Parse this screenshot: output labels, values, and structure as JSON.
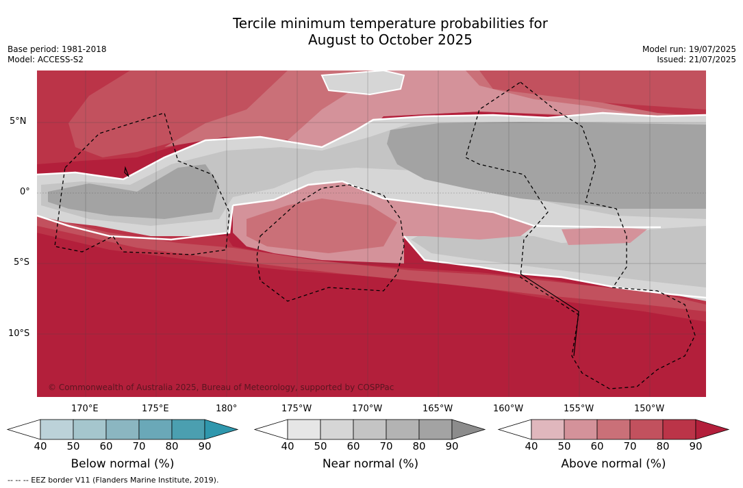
{
  "title_line1": "Tercile minimum temperature probabilities for",
  "title_line2": "August to October 2025",
  "base_period": "Base period: 1981-2018",
  "model": "Model: ACCESS-S2",
  "model_run": "Model run: 19/07/2025",
  "issued": "Issued: 21/07/2025",
  "copyright": "© Commonwealth of Australia 2025, Bureau of Meteorology, supported by COSPPac",
  "footnote": "--  --  -- EEZ border V11 (Flanders Marine Institute, 2019).",
  "lat_labels": [
    "5°N",
    "0°",
    "5°S",
    "10°S"
  ],
  "lon_labels": [
    "170°E",
    "175°E",
    "180°",
    "175°W",
    "170°W",
    "165°W",
    "160°W",
    "155°W",
    "150°W"
  ],
  "colorbars": [
    {
      "label": "Below normal (%)",
      "ticks": [
        "40",
        "50",
        "60",
        "70",
        "80",
        "90"
      ],
      "colors": [
        "#ffffff",
        "#bcd2d9",
        "#a5c6cd",
        "#8bb6c1",
        "#6aa8b8",
        "#4b9fb0",
        "#2f97ad"
      ]
    },
    {
      "label": "Near normal (%)",
      "ticks": [
        "40",
        "50",
        "60",
        "70",
        "80",
        "90"
      ],
      "colors": [
        "#ffffff",
        "#e6e6e6",
        "#d6d6d6",
        "#c4c4c4",
        "#b3b3b3",
        "#a3a3a3",
        "#8c8c8c"
      ]
    },
    {
      "label": "Above normal (%)",
      "ticks": [
        "40",
        "50",
        "60",
        "70",
        "80",
        "90"
      ],
      "colors": [
        "#ffffff",
        "#e0b7bd",
        "#d4929a",
        "#ca7078",
        "#c2515e",
        "#bb3448",
        "#b31f3b"
      ]
    }
  ]
}
